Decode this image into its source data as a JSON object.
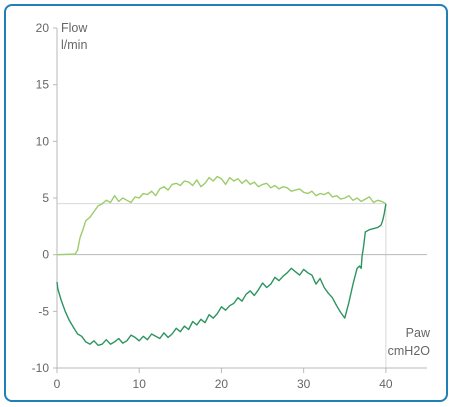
{
  "chart_data": {
    "type": "line",
    "title": "",
    "ylabel_line1": "Flow",
    "ylabel_line2": "l/min",
    "xlabel_line1": "Paw",
    "xlabel_line2": "cmH2O",
    "xlim": [
      0,
      45
    ],
    "ylim": [
      -10,
      20
    ],
    "x_ticks": [
      0,
      10,
      20,
      30,
      40
    ],
    "y_ticks": [
      -10,
      -5,
      0,
      5,
      10,
      15,
      20
    ],
    "x_tick_labels": [
      "0",
      "10",
      "20",
      "30",
      "40"
    ],
    "y_tick_labels": [
      "-10",
      "-5",
      "0",
      "5",
      "10",
      "15",
      "20"
    ],
    "reference_lines": {
      "horizontal_y": 4.5,
      "vertical_x": 40,
      "zero_line_y": 0
    },
    "grid": false,
    "colors": {
      "border": "#1f7fb6",
      "axis": "#b8b8b8",
      "text": "#666666",
      "inspiration": "#9dcc6a",
      "expiration": "#2e9460"
    },
    "series": [
      {
        "key": "inspiration",
        "x": [
          0,
          2.2,
          2.5,
          2.8,
          3.1,
          3.5,
          4.0,
          4.5,
          5.0,
          5.5,
          6.0,
          6.5,
          7.0,
          7.5,
          8.0,
          8.5,
          9.0,
          9.5,
          10.0,
          10.5,
          11.0,
          11.5,
          12.0,
          12.5,
          13.0,
          13.5,
          14.0,
          14.5,
          15.0,
          15.5,
          16.0,
          16.5,
          17.0,
          17.5,
          18.0,
          18.5,
          19.0,
          19.5,
          20.0,
          20.5,
          21.0,
          21.5,
          22.0,
          22.5,
          23.0,
          23.5,
          24.0,
          24.5,
          25.0,
          25.5,
          26.0,
          26.5,
          27.0,
          27.5,
          28.0,
          28.5,
          29.0,
          29.5,
          30.0,
          30.5,
          31.0,
          31.5,
          32.0,
          32.5,
          33.0,
          33.5,
          34.0,
          34.5,
          35.0,
          35.5,
          36.0,
          36.5,
          37.0,
          37.5,
          38.0,
          38.5,
          39.0,
          39.5,
          40.0
        ],
        "y": [
          0,
          0.05,
          0.4,
          1.5,
          2.1,
          3.0,
          3.3,
          3.8,
          4.3,
          4.5,
          4.8,
          4.6,
          5.2,
          4.7,
          5.0,
          4.8,
          4.6,
          5.1,
          5.0,
          5.4,
          5.3,
          5.6,
          5.2,
          5.8,
          6.0,
          5.7,
          6.2,
          6.3,
          6.1,
          6.5,
          6.4,
          6.1,
          6.6,
          6.0,
          6.3,
          6.8,
          6.5,
          6.9,
          6.7,
          6.2,
          6.8,
          6.5,
          6.7,
          6.3,
          6.6,
          6.2,
          6.4,
          6.0,
          6.2,
          6.3,
          5.9,
          6.1,
          5.8,
          6.0,
          5.9,
          5.6,
          5.7,
          5.8,
          5.5,
          5.4,
          5.6,
          5.2,
          5.4,
          5.3,
          5.5,
          5.1,
          5.2,
          4.9,
          5.0,
          5.2,
          4.8,
          5.0,
          4.7,
          4.9,
          5.1,
          4.6,
          4.8,
          4.7,
          4.5
        ]
      },
      {
        "key": "expiration",
        "x": [
          40.0,
          39.8,
          39.6,
          39.4,
          39.0,
          38.5,
          38.0,
          37.5,
          37.3,
          37.1,
          37.0,
          36.8,
          36.5,
          36.0,
          35.5,
          35.0,
          34.5,
          34.0,
          33.5,
          33.0,
          32.5,
          32.0,
          31.5,
          31.0,
          30.5,
          30.0,
          29.5,
          29.0,
          28.5,
          28.0,
          27.5,
          27.0,
          26.5,
          26.0,
          25.5,
          25.0,
          24.5,
          24.0,
          23.5,
          23.0,
          22.5,
          22.0,
          21.5,
          21.0,
          20.5,
          20.0,
          19.5,
          19.0,
          18.5,
          18.0,
          17.5,
          17.0,
          16.5,
          16.0,
          15.5,
          15.0,
          14.5,
          14.0,
          13.5,
          13.0,
          12.5,
          12.0,
          11.5,
          11.0,
          10.5,
          10.0,
          9.5,
          9.0,
          8.5,
          8.0,
          7.5,
          7.0,
          6.5,
          6.0,
          5.5,
          5.0,
          4.5,
          4.0,
          3.5,
          3.0,
          2.5,
          2.0,
          1.5,
          1.0,
          0.5,
          0.1,
          0.0
        ],
        "y": [
          4.5,
          3.6,
          3.0,
          2.6,
          2.4,
          2.3,
          2.2,
          2.0,
          0.8,
          -0.2,
          -1.2,
          -1.0,
          -1.2,
          -2.6,
          -4.2,
          -5.6,
          -5.1,
          -4.5,
          -3.8,
          -3.4,
          -2.9,
          -2.1,
          -2.6,
          -1.8,
          -1.6,
          -1.3,
          -1.8,
          -1.5,
          -1.2,
          -1.6,
          -1.9,
          -2.3,
          -2.0,
          -2.6,
          -2.9,
          -2.5,
          -3.1,
          -3.6,
          -3.2,
          -3.5,
          -4.1,
          -3.8,
          -4.3,
          -4.5,
          -4.9,
          -4.6,
          -5.2,
          -5.6,
          -5.3,
          -6.0,
          -5.7,
          -6.2,
          -5.9,
          -6.6,
          -6.3,
          -6.8,
          -6.5,
          -7.0,
          -7.3,
          -6.9,
          -7.4,
          -7.2,
          -7.0,
          -7.5,
          -7.2,
          -7.6,
          -7.3,
          -7.1,
          -7.6,
          -7.8,
          -7.4,
          -7.7,
          -7.9,
          -7.5,
          -7.9,
          -8.0,
          -7.6,
          -7.9,
          -7.7,
          -7.2,
          -7.0,
          -6.4,
          -5.8,
          -5.0,
          -4.0,
          -3.0,
          -2.4
        ]
      }
    ]
  }
}
